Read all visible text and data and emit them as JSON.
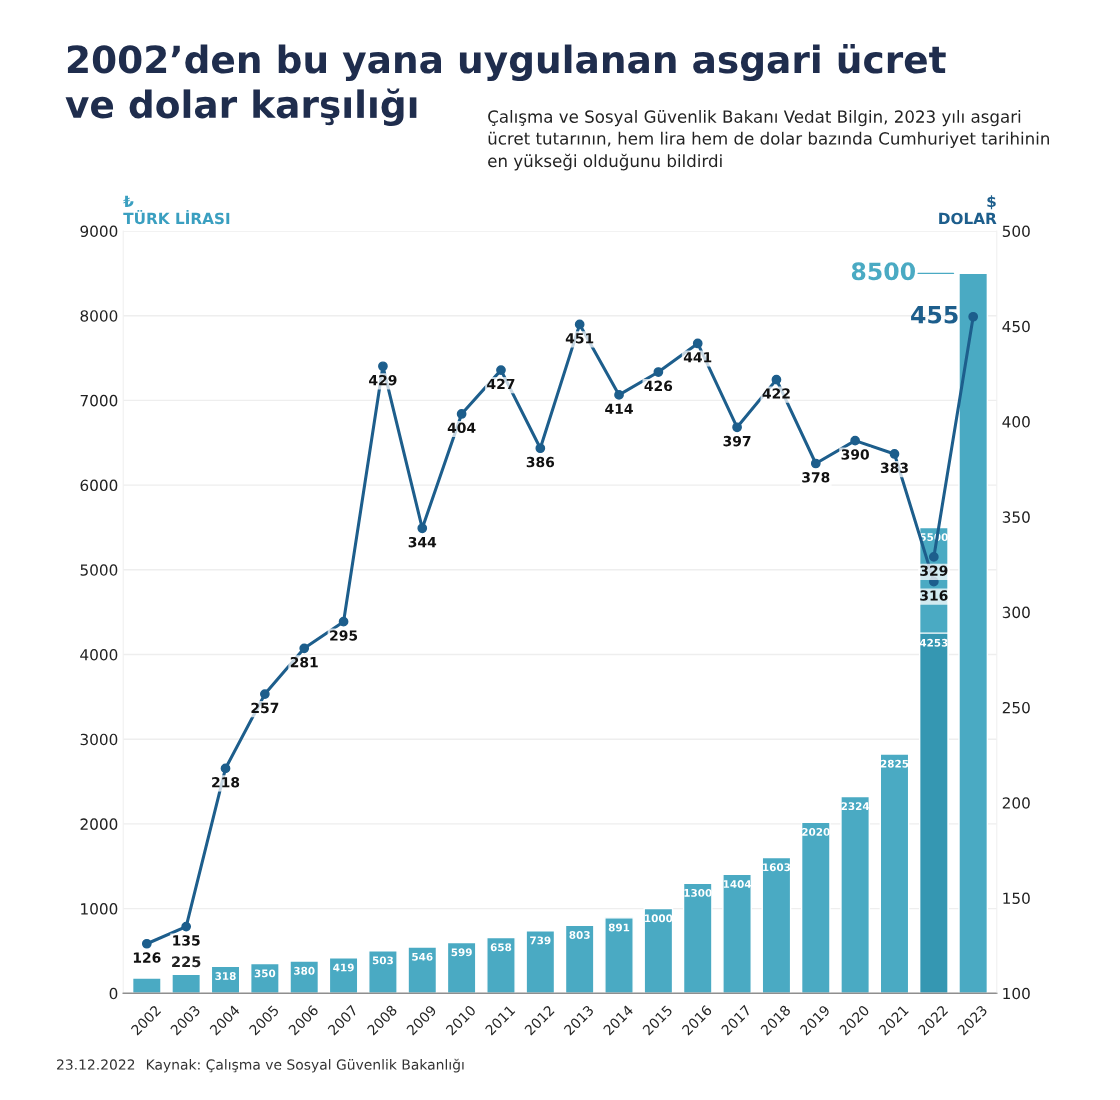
{
  "chart_data": {
    "type": "bar",
    "title": "2002’den bu yana uygulanan asgari ücret\nve dolar karşılığı",
    "subtitle": "Çalışma ve Sosyal Güvenlik Bakanı Vedat Bilgin, 2023 yılı asgari\nücret tutarının, hem lira hem de dolar bazında Cumhuriyet tarihinin\nen yükseği olduğunu bildirdi",
    "ylabel": "₺\nTÜRK LİRASI",
    "y2label": "$\nDOLAR",
    "categories": [
      "2002",
      "2003",
      "2004",
      "2005",
      "2006",
      "2007",
      "2008",
      "2009",
      "2010",
      "2011",
      "2012",
      "2013",
      "2014",
      "2015",
      "2016",
      "2017",
      "2018",
      "2019",
      "2020",
      "2021",
      "2022",
      "2023"
    ],
    "series": [
      {
        "color": "#4aaac3",
        "values": [
          180,
          225,
          318,
          350,
          380,
          419,
          503,
          546,
          599,
          658,
          739,
          803,
          891,
          1000,
          1300,
          1404,
          1603,
          2020,
          2324,
          2825,
          5500,
          8500
        ],
        "value_labels": [
          null,
          "225",
          "318",
          "350",
          "380",
          "419",
          "503",
          "546",
          "599",
          "658",
          "739",
          "803",
          "891",
          "1000",
          "1300",
          "1404",
          "1603",
          "2020",
          "2324",
          "2825",
          "5500",
          "8500"
        ]
      },
      {
        "color": "#3597b2",
        "values": [
          null,
          null,
          null,
          null,
          null,
          null,
          null,
          null,
          null,
          null,
          null,
          null,
          null,
          null,
          null,
          null,
          null,
          null,
          null,
          null,
          4253,
          null
        ],
        "value_labels": [
          null,
          null,
          null,
          null,
          null,
          null,
          null,
          null,
          null,
          null,
          null,
          null,
          null,
          null,
          null,
          null,
          null,
          null,
          null,
          null,
          "4253",
          null
        ]
      },
      {
        "type": "line",
        "axis": "y2",
        "color": "#1d5e8c",
        "marker": "circle",
        "values": [
          126,
          135,
          218,
          257,
          281,
          295,
          429,
          344,
          404,
          427,
          386,
          451,
          414,
          426,
          441,
          397,
          422,
          378,
          390,
          383,
          316,
          null
        ],
        "value_labels": [
          "126",
          "135",
          "218",
          "257",
          "281",
          "295",
          "429",
          "344",
          "404",
          "427",
          "386",
          "451",
          "414",
          "426",
          "441",
          "397",
          "422",
          "378",
          "390",
          "383",
          "316",
          null
        ]
      },
      {
        "type": "line",
        "axis": "y2",
        "color": "#1d5e8c",
        "marker": "circle",
        "values": [
          null,
          null,
          null,
          null,
          null,
          null,
          null,
          null,
          null,
          null,
          null,
          null,
          null,
          null,
          null,
          null,
          null,
          null,
          null,
          null,
          329,
          455
        ],
        "value_labels": [
          null,
          null,
          null,
          null,
          null,
          null,
          null,
          null,
          null,
          null,
          null,
          null,
          null,
          null,
          null,
          null,
          null,
          null,
          null,
          null,
          "329",
          "455"
        ]
      }
    ],
    "ylim": [
      0,
      9000
    ],
    "yticks": [
      0,
      1000,
      2000,
      3000,
      4000,
      5000,
      6000,
      7000,
      8000,
      9000
    ],
    "y2lim": [
      100,
      500
    ],
    "y2ticks": [
      100,
      150,
      200,
      250,
      300,
      350,
      400,
      450,
      500
    ],
    "grid": "y",
    "annotations": [
      "23.12.2022",
      "Kaynak: Çalışma ve Sosyal Güvenlik Bakanlığı"
    ]
  }
}
